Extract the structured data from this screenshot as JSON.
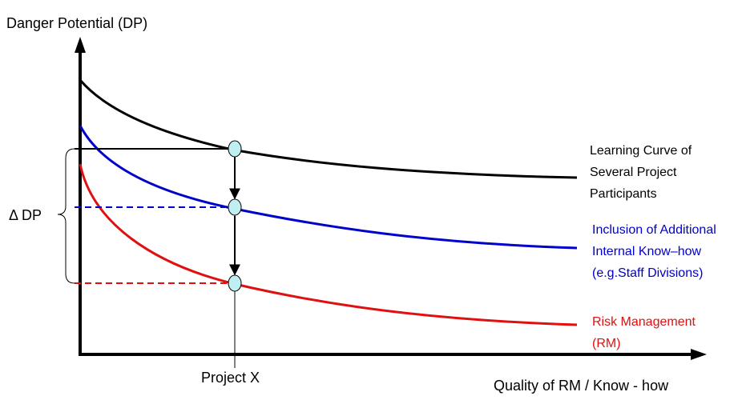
{
  "labels": {
    "y_axis": "Danger Potential (DP)",
    "x_axis": "Quality of RM / Know - how",
    "project": "Project X",
    "delta": "Δ DP"
  },
  "curves": {
    "learning": {
      "lines": [
        "Learning Curve of",
        "Several Project",
        "Participants"
      ],
      "color": "#000000"
    },
    "inclusion": {
      "lines": [
        "Inclusion of Additional",
        "Internal Know–how",
        "(e.g.Staff Divisions)"
      ],
      "color": "#0000cc"
    },
    "risk": {
      "lines": [
        "Risk Management",
        "(RM)"
      ],
      "color": "#e01010"
    }
  },
  "colors": {
    "marker_fill": "#bfeff0",
    "axis": "#000000"
  }
}
